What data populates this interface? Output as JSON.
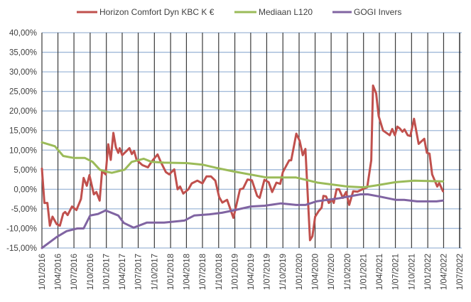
{
  "chart_data": {
    "type": "line",
    "title": "",
    "xlabel": "",
    "ylabel": "",
    "legend_position": "top",
    "grid": {
      "horizontal": true,
      "vertical": true
    },
    "ylim": [
      -15,
      40
    ],
    "y_ticks": [
      40,
      35,
      30,
      25,
      20,
      15,
      10,
      5,
      0,
      -5,
      -10,
      -15
    ],
    "y_tick_labels": [
      "40,00%",
      "35,00%",
      "30,00%",
      "25,00%",
      "20,00%",
      "15,00%",
      "10,00%",
      "5,00%",
      "0,00%",
      "-5,00%",
      "-10,00%",
      "-15,00%"
    ],
    "x_tick_labels": [
      "1/01/2016",
      "1/04/2016",
      "1/07/2016",
      "1/10/2016",
      "1/01/2017",
      "1/04/2017",
      "1/07/2017",
      "1/10/2017",
      "1/01/2018",
      "1/04/2018",
      "1/07/2018",
      "1/10/2018",
      "1/01/2019",
      "1/04/2019",
      "1/07/2019",
      "1/10/2019",
      "1/01/2020",
      "1/04/2020",
      "1/07/2020",
      "1/10/2020",
      "1/01/2021",
      "1/04/2021",
      "1/07/2021",
      "1/10/2021",
      "1/01/2022",
      "1/04/2022",
      "1/07/2022"
    ],
    "xlim": [
      "2016-01-01",
      "2022-07-01"
    ],
    "colors": {
      "gridline_horizontal": "#9fb8d8",
      "gridline_vertical": "#3a3a3a"
    },
    "series": [
      {
        "name": "Horizon Comfort Dyn KBC  K €",
        "color": "#c0504d",
        "points": [
          [
            "2016-01-01",
            5.3
          ],
          [
            "2016-01-15",
            -3.5
          ],
          [
            "2016-02-01",
            -3.5
          ],
          [
            "2016-02-15",
            -9.3
          ],
          [
            "2016-03-01",
            -7
          ],
          [
            "2016-03-25",
            -8.9
          ],
          [
            "2016-04-12",
            -9.3
          ],
          [
            "2016-05-01",
            -6.2
          ],
          [
            "2016-05-12",
            -5.8
          ],
          [
            "2016-05-26",
            -6.6
          ],
          [
            "2016-06-20",
            -4.4
          ],
          [
            "2016-07-15",
            -5.3
          ],
          [
            "2016-08-10",
            -2.5
          ],
          [
            "2016-08-25",
            2.9
          ],
          [
            "2016-09-12",
            0.9
          ],
          [
            "2016-09-27",
            3.6
          ],
          [
            "2016-10-22",
            -1.3
          ],
          [
            "2016-11-05",
            -0.7
          ],
          [
            "2016-11-24",
            -2.9
          ],
          [
            "2016-12-08",
            4.7
          ],
          [
            "2016-12-28",
            3.8
          ],
          [
            "2017-01-12",
            11.5
          ],
          [
            "2017-01-26",
            7.5
          ],
          [
            "2017-02-10",
            14.4
          ],
          [
            "2017-02-24",
            10.7
          ],
          [
            "2017-03-10",
            9.3
          ],
          [
            "2017-03-18",
            10.5
          ],
          [
            "2017-04-01",
            8.7
          ],
          [
            "2017-05-12",
            10.5
          ],
          [
            "2017-05-26",
            9
          ],
          [
            "2017-06-08",
            9.8
          ],
          [
            "2017-06-22",
            7.5
          ],
          [
            "2017-07-24",
            6.2
          ],
          [
            "2017-08-25",
            5.6
          ],
          [
            "2017-09-16",
            7.1
          ],
          [
            "2017-10-19",
            8.9
          ],
          [
            "2017-11-06",
            7
          ],
          [
            "2017-12-05",
            4.4
          ],
          [
            "2017-12-24",
            3.8
          ],
          [
            "2018-01-22",
            5.1
          ],
          [
            "2018-02-10",
            0
          ],
          [
            "2018-02-24",
            0.7
          ],
          [
            "2018-03-14",
            -1.1
          ],
          [
            "2018-04-12",
            0
          ],
          [
            "2018-05-01",
            1.5
          ],
          [
            "2018-06-02",
            2.2
          ],
          [
            "2018-07-01",
            1.5
          ],
          [
            "2018-07-24",
            3.3
          ],
          [
            "2018-08-18",
            3.3
          ],
          [
            "2018-09-12",
            2.2
          ],
          [
            "2018-10-04",
            -2
          ],
          [
            "2018-10-22",
            -3.4
          ],
          [
            "2018-11-18",
            -2.7
          ],
          [
            "2018-12-24",
            -7.3
          ],
          [
            "2019-01-30",
            0
          ],
          [
            "2019-02-17",
            0.2
          ],
          [
            "2019-03-14",
            2.5
          ],
          [
            "2019-04-08",
            2.3
          ],
          [
            "2019-05-08",
            -1.7
          ],
          [
            "2019-05-22",
            -2.2
          ],
          [
            "2019-06-18",
            2.4
          ],
          [
            "2019-07-12",
            1.8
          ],
          [
            "2019-08-01",
            -0.7
          ],
          [
            "2019-08-25",
            1.7
          ],
          [
            "2019-09-16",
            1.4
          ],
          [
            "2019-10-01",
            4.4
          ],
          [
            "2019-11-06",
            7.4
          ],
          [
            "2019-11-17",
            7.4
          ],
          [
            "2019-12-16",
            14.2
          ],
          [
            "2020-01-04",
            12.4
          ],
          [
            "2020-01-22",
            8.7
          ],
          [
            "2020-02-06",
            10.3
          ],
          [
            "2020-03-03",
            -13
          ],
          [
            "2020-03-17",
            -12
          ],
          [
            "2020-04-01",
            -7
          ],
          [
            "2020-04-22",
            -5.5
          ],
          [
            "2020-05-08",
            -4.7
          ],
          [
            "2020-05-18",
            -1.7
          ],
          [
            "2020-06-02",
            -1.8
          ],
          [
            "2020-06-18",
            -3.5
          ],
          [
            "2020-07-05",
            -2.6
          ],
          [
            "2020-07-16",
            -3.5
          ],
          [
            "2020-08-01",
            0
          ],
          [
            "2020-08-15",
            0
          ],
          [
            "2020-09-06",
            -2.2
          ],
          [
            "2020-09-24",
            -0.7
          ],
          [
            "2020-10-12",
            -4
          ],
          [
            "2020-11-03",
            -0.5
          ],
          [
            "2020-11-28",
            -0.6
          ],
          [
            "2021-01-04",
            0.2
          ],
          [
            "2021-01-22",
            0.5
          ],
          [
            "2021-02-14",
            7.4
          ],
          [
            "2021-02-24",
            26.5
          ],
          [
            "2021-03-14",
            24.5
          ],
          [
            "2021-03-28",
            18.7
          ],
          [
            "2021-04-22",
            15
          ],
          [
            "2021-05-30",
            13.8
          ],
          [
            "2021-06-13",
            15.4
          ],
          [
            "2021-06-28",
            13.8
          ],
          [
            "2021-07-12",
            16
          ],
          [
            "2021-07-27",
            15.5
          ],
          [
            "2021-08-10",
            14.7
          ],
          [
            "2021-08-22",
            15.3
          ],
          [
            "2021-09-09",
            13.8
          ],
          [
            "2021-09-24",
            13.6
          ],
          [
            "2021-10-15",
            18
          ],
          [
            "2021-11-10",
            11.6
          ],
          [
            "2021-12-12",
            12.9
          ],
          [
            "2021-12-27",
            9.3
          ],
          [
            "2022-01-11",
            9.1
          ],
          [
            "2022-01-26",
            3.8
          ],
          [
            "2022-02-24",
            0.7
          ],
          [
            "2022-03-07",
            1.6
          ],
          [
            "2022-03-28",
            -0.5
          ]
        ]
      },
      {
        "name": "Mediaan L120",
        "color": "#9bbb59",
        "points": [
          [
            "2016-01-01",
            12
          ],
          [
            "2016-03-15",
            11
          ],
          [
            "2016-05-01",
            8.5
          ],
          [
            "2016-07-01",
            8
          ],
          [
            "2016-09-01",
            8
          ],
          [
            "2016-10-15",
            7
          ],
          [
            "2016-11-25",
            5
          ],
          [
            "2017-01-01",
            4.5
          ],
          [
            "2017-02-01",
            4.2
          ],
          [
            "2017-04-15",
            5
          ],
          [
            "2017-05-25",
            7
          ],
          [
            "2017-08-01",
            7.8
          ],
          [
            "2017-09-15",
            7
          ],
          [
            "2017-11-25",
            6.8
          ],
          [
            "2018-04-01",
            6.7
          ],
          [
            "2018-07-01",
            6.3
          ],
          [
            "2018-09-15",
            5.5
          ],
          [
            "2019-01-01",
            4.5
          ],
          [
            "2019-07-01",
            3
          ],
          [
            "2019-12-15",
            3
          ],
          [
            "2020-04-15",
            1.7
          ],
          [
            "2020-10-01",
            0.7
          ],
          [
            "2021-01-01",
            0.5
          ],
          [
            "2021-03-15",
            1
          ],
          [
            "2021-07-01",
            1.8
          ],
          [
            "2021-10-15",
            2.2
          ],
          [
            "2022-03-28",
            2
          ]
        ]
      },
      {
        "name": "GOGI Invers",
        "color": "#8064a2",
        "points": [
          [
            "2016-01-01",
            -15
          ],
          [
            "2016-03-25",
            -12.2
          ],
          [
            "2016-05-20",
            -10.7
          ],
          [
            "2016-07-20",
            -10
          ],
          [
            "2016-08-25",
            -10
          ],
          [
            "2016-10-01",
            -6.7
          ],
          [
            "2016-11-15",
            -6.3
          ],
          [
            "2016-12-28",
            -5.4
          ],
          [
            "2017-03-10",
            -6.7
          ],
          [
            "2017-04-10",
            -8.6
          ],
          [
            "2017-06-05",
            -9.8
          ],
          [
            "2017-08-20",
            -8.5
          ],
          [
            "2017-11-25",
            -8.5
          ],
          [
            "2018-03-20",
            -8
          ],
          [
            "2018-05-15",
            -6.7
          ],
          [
            "2018-08-10",
            -6.4
          ],
          [
            "2018-10-20",
            -6
          ],
          [
            "2018-12-24",
            -5.4
          ],
          [
            "2019-04-01",
            -4.4
          ],
          [
            "2019-06-20",
            -4.2
          ],
          [
            "2019-09-20",
            -3.6
          ],
          [
            "2019-12-15",
            -4
          ],
          [
            "2020-02-06",
            -4
          ],
          [
            "2020-04-08",
            -3.1
          ],
          [
            "2020-08-15",
            -2.3
          ],
          [
            "2020-12-15",
            -1.3
          ],
          [
            "2021-01-25",
            -1.3
          ],
          [
            "2021-03-28",
            -1.8
          ],
          [
            "2021-07-01",
            -2.7
          ],
          [
            "2021-08-20",
            -2.7
          ],
          [
            "2021-11-01",
            -3.1
          ],
          [
            "2022-02-20",
            -3.1
          ],
          [
            "2022-03-28",
            -2.9
          ]
        ]
      }
    ]
  }
}
